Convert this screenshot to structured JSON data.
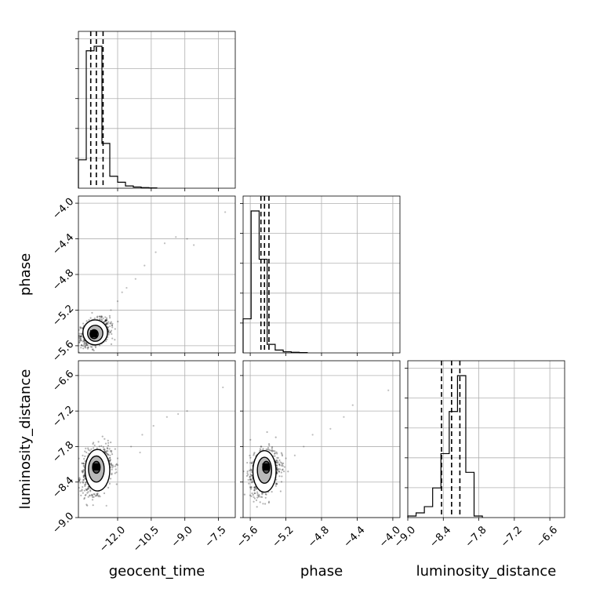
{
  "chart_data": {
    "type": "corner",
    "parameters": [
      "geocent_time",
      "phase",
      "luminosity_distance"
    ],
    "axes": {
      "geocent_time": {
        "label": "geocent_time",
        "range": [
          -13.75,
          -6.75
        ],
        "ticks": [
          -12.0,
          -10.5,
          -9.0,
          -7.5
        ],
        "tick_labels": [
          "−12.0",
          "−10.5",
          "−9.0",
          "−7.5"
        ]
      },
      "phase": {
        "label": "phase",
        "range": [
          -5.68,
          -3.92
        ],
        "ticks": [
          -5.6,
          -5.2,
          -4.8,
          -4.4,
          -4.0
        ],
        "tick_labels": [
          "−5.6",
          "−5.2",
          "−4.8",
          "−4.4",
          "−4.0"
        ]
      },
      "luminosity_distance": {
        "label": "luminosity_distance",
        "range": [
          -9.0,
          -6.35
        ],
        "ticks": [
          -9.0,
          -8.4,
          -7.8,
          -7.2,
          -6.6
        ],
        "tick_labels": [
          "−9.0",
          "−8.4",
          "−7.8",
          "−7.2",
          "−6.6"
        ]
      }
    },
    "histograms": {
      "geocent_time": {
        "edges": [
          -13.75,
          -13.4,
          -13.05,
          -12.7,
          -12.35,
          -12.0,
          -11.65,
          -11.3,
          -10.95,
          -10.6,
          -10.25
        ],
        "counts": [
          0.19,
          0.92,
          0.95,
          0.3,
          0.08,
          0.04,
          0.015,
          0.008,
          0.004,
          0.002
        ],
        "quantiles": [
          -13.2,
          -12.95,
          -12.65
        ]
      },
      "phase": {
        "edges": [
          -5.68,
          -5.59,
          -5.5,
          -5.41,
          -5.32,
          -5.23,
          -5.14,
          -5.05,
          -4.96
        ],
        "counts": [
          0.24,
          1.0,
          0.66,
          0.06,
          0.02,
          0.008,
          0.004,
          0.002
        ],
        "quantiles": [
          -5.48,
          -5.44,
          -5.39
        ]
      },
      "luminosity_distance": {
        "edges": [
          -9.0,
          -8.86,
          -8.72,
          -8.58,
          -8.44,
          -8.3,
          -8.16,
          -8.02,
          -7.88,
          -7.74
        ],
        "counts": [
          0.01,
          0.03,
          0.07,
          0.19,
          0.41,
          0.68,
          0.91,
          0.29,
          0.01
        ],
        "quantiles": [
          -8.43,
          -8.26,
          -8.12
        ]
      }
    },
    "scatter": [
      {
        "x": "geocent_time",
        "y": "phase",
        "center": [
          -13.0,
          -5.45
        ],
        "spread": [
          0.32,
          0.07
        ],
        "trend": [
          0.12,
          0.5
        ],
        "n": 900,
        "outliers": [
          [
            -12.3,
            -5.2
          ],
          [
            -12.0,
            -5.1
          ],
          [
            -11.6,
            -4.95
          ],
          [
            -11.2,
            -4.85
          ],
          [
            -10.8,
            -4.7
          ],
          [
            -10.3,
            -4.55
          ],
          [
            -9.9,
            -4.45
          ],
          [
            -9.4,
            -4.38
          ],
          [
            -8.9,
            -4.4
          ],
          [
            -8.6,
            -4.47
          ],
          [
            -7.2,
            -4.1
          ],
          [
            -11.8,
            -5.0
          ]
        ],
        "contours": [
          {
            "cx": -13.0,
            "cy": -5.45,
            "rx": 0.55,
            "ry": 0.14
          },
          {
            "cx": -13.0,
            "cy": -5.46,
            "rx": 0.34,
            "ry": 0.09
          },
          {
            "cx": -13.05,
            "cy": -5.47,
            "rx": 0.18,
            "ry": 0.05
          }
        ]
      },
      {
        "x": "geocent_time",
        "y": "luminosity_distance",
        "center": [
          -12.95,
          -8.2
        ],
        "spread": [
          0.32,
          0.18
        ],
        "trend": [
          0.15,
          0.5
        ],
        "n": 900,
        "outliers": [
          [
            -12.0,
            -8.0
          ],
          [
            -11.4,
            -7.8
          ],
          [
            -10.9,
            -7.6
          ],
          [
            -10.4,
            -7.45
          ],
          [
            -9.8,
            -7.3
          ],
          [
            -9.3,
            -7.25
          ],
          [
            -8.9,
            -7.2
          ],
          [
            -7.3,
            -6.8
          ],
          [
            -11.0,
            -7.9
          ],
          [
            -12.5,
            -8.8
          ]
        ],
        "contours": [
          {
            "cx": -12.9,
            "cy": -8.2,
            "rx": 0.55,
            "ry": 0.35
          },
          {
            "cx": -12.95,
            "cy": -8.18,
            "rx": 0.35,
            "ry": 0.22
          },
          {
            "cx": -12.95,
            "cy": -8.15,
            "rx": 0.17,
            "ry": 0.1
          }
        ]
      },
      {
        "x": "phase",
        "y": "luminosity_distance",
        "center": [
          -5.44,
          -8.22
        ],
        "spread": [
          0.08,
          0.18
        ],
        "trend": [
          0.035,
          0.5
        ],
        "n": 900,
        "outliers": [
          [
            -5.2,
            -8.0
          ],
          [
            -5.0,
            -7.8
          ],
          [
            -4.9,
            -7.6
          ],
          [
            -4.7,
            -7.5
          ],
          [
            -4.55,
            -7.3
          ],
          [
            -4.45,
            -7.1
          ],
          [
            -4.05,
            -6.85
          ],
          [
            -5.1,
            -7.95
          ]
        ],
        "contours": [
          {
            "cx": -5.44,
            "cy": -8.22,
            "rx": 0.13,
            "ry": 0.35
          },
          {
            "cx": -5.44,
            "cy": -8.2,
            "rx": 0.08,
            "ry": 0.22
          },
          {
            "cx": -5.42,
            "cy": -8.15,
            "rx": 0.04,
            "ry": 0.1
          }
        ]
      }
    ],
    "grid": true
  }
}
